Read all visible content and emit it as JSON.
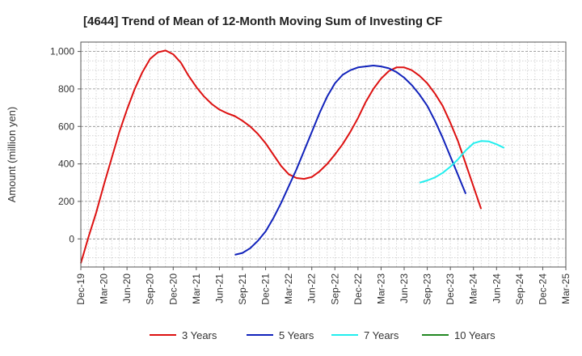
{
  "chart_data": {
    "type": "line",
    "title": "[4644]  Trend of Mean of 12-Month Moving Sum of Investing CF",
    "xlabel": "",
    "ylabel": "Amount (million yen)",
    "x_ticks": [
      "Dec-19",
      "Mar-20",
      "Jun-20",
      "Sep-20",
      "Dec-20",
      "Mar-21",
      "Jun-21",
      "Sep-21",
      "Dec-21",
      "Mar-22",
      "Jun-22",
      "Sep-22",
      "Dec-22",
      "Mar-23",
      "Jun-23",
      "Sep-23",
      "Dec-23",
      "Mar-24",
      "Jun-24",
      "Sep-24",
      "Dec-24",
      "Mar-25"
    ],
    "y_ticks": [
      0,
      200,
      400,
      600,
      800,
      1000
    ],
    "y_tick_labels": [
      "0",
      "200",
      "400",
      "600",
      "800",
      "1,000"
    ],
    "ylim": [
      -150,
      1050
    ],
    "grid": true,
    "legend_position": "bottom",
    "series": [
      {
        "name": "3 Years",
        "color": "#dd1111",
        "x_start": "Dec-19",
        "values": [
          -130,
          10,
          140,
          290,
          430,
          570,
          690,
          800,
          890,
          960,
          995,
          1005,
          985,
          940,
          870,
          810,
          760,
          720,
          690,
          670,
          655,
          630,
          600,
          560,
          510,
          450,
          390,
          345,
          325,
          320,
          330,
          360,
          400,
          450,
          505,
          570,
          645,
          730,
          800,
          855,
          895,
          915,
          915,
          900,
          870,
          830,
          775,
          710,
          620,
          520,
          400,
          280,
          160
        ]
      },
      {
        "name": "5 Years",
        "color": "#1122bb",
        "x_start": "Aug-21",
        "values": [
          -85,
          -75,
          -50,
          -10,
          40,
          110,
          190,
          280,
          370,
          470,
          570,
          670,
          760,
          830,
          875,
          900,
          915,
          920,
          925,
          920,
          910,
          890,
          860,
          820,
          770,
          710,
          630,
          540,
          440,
          340,
          240
        ]
      },
      {
        "name": "7 Years",
        "color": "#22eeee",
        "x_start": "Aug-23",
        "values": [
          300,
          312,
          328,
          352,
          385,
          425,
          472,
          510,
          522,
          520,
          505,
          485
        ]
      },
      {
        "name": "10 Years",
        "color": "#228822",
        "x_start": "",
        "values": []
      }
    ]
  }
}
